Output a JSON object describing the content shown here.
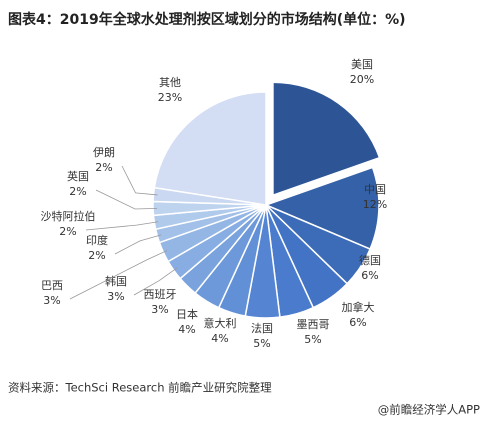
{
  "chart_data": {
    "type": "pie",
    "title": "图表4：2019年全球水处理剂按区域划分的市场结构(单位：%)",
    "categories": [
      "美国",
      "中国",
      "德国",
      "加拿大",
      "墨西哥",
      "法国",
      "意大利",
      "日本",
      "西班牙",
      "韩国",
      "巴西",
      "印度",
      "沙特阿拉伯",
      "英国",
      "伊朗",
      "其他"
    ],
    "values": [
      20,
      12,
      6,
      6,
      5,
      5,
      4,
      4,
      3,
      3,
      3,
      2,
      2,
      2,
      2,
      23
    ],
    "value_labels": [
      "20%",
      "12%",
      "6%",
      "6%",
      "5%",
      "5%",
      "4%",
      "4%",
      "3%",
      "3%",
      "3%",
      "2%",
      "2%",
      "2%",
      "2%",
      "23%"
    ],
    "colors": [
      "#2d5596",
      "#3561a8",
      "#3c6bb8",
      "#4373c4",
      "#4a7bcc",
      "#5584d2",
      "#6190d7",
      "#6d99da",
      "#7aa3de",
      "#87ade2",
      "#94b6e5",
      "#a2c0e8",
      "#b0caeb",
      "#bed3ee",
      "#cad9f1",
      "#d3ddf3"
    ]
  },
  "source": "资料来源：TechSci Research 前瞻产业研究院整理",
  "footer": "@前瞻经济学人APP"
}
